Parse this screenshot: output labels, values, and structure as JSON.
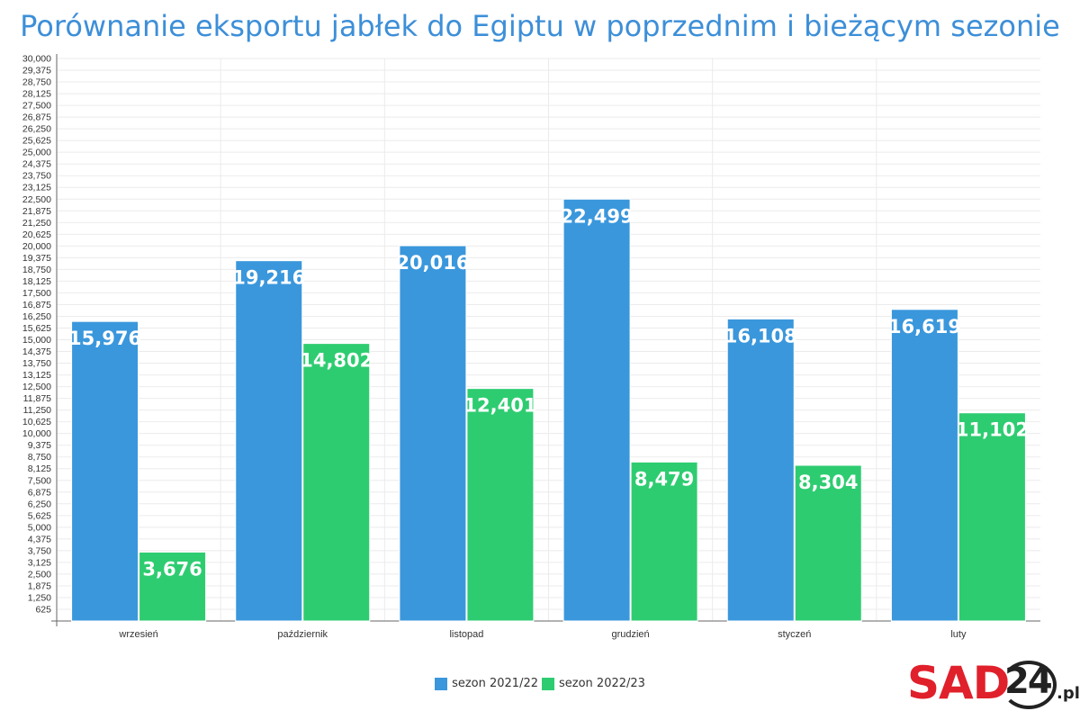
{
  "chart_data": {
    "type": "bar",
    "title": "Porównanie eksportu jabłek do Egiptu w poprzednim i bieżącym sezonie",
    "categories": [
      "wrzesień",
      "październik",
      "listopad",
      "grudzień",
      "styczeń",
      "luty"
    ],
    "series": [
      {
        "name": "sezon 2021/22",
        "color": "#3a97dc",
        "values": [
          15976,
          19216,
          20016,
          22499,
          16108,
          16619
        ],
        "labels": [
          "15,976",
          "19,216",
          "20,016",
          "22,499",
          "16,108",
          "16,619"
        ]
      },
      {
        "name": "sezon 2022/23",
        "color": "#2ecc71",
        "values": [
          3676,
          14802,
          12401,
          8479,
          8304,
          11102
        ],
        "labels": [
          "3,676",
          "14,802",
          "12,401",
          "8,479",
          "8,304",
          "11,102"
        ]
      }
    ],
    "ylim": [
      0,
      30000
    ],
    "y_tick_step": 625,
    "xlabel": "",
    "ylabel": "",
    "grid": true,
    "legend": "bottom-center"
  },
  "logo": {
    "brand": "SAD",
    "number": "24",
    "suffix": ".pl"
  }
}
